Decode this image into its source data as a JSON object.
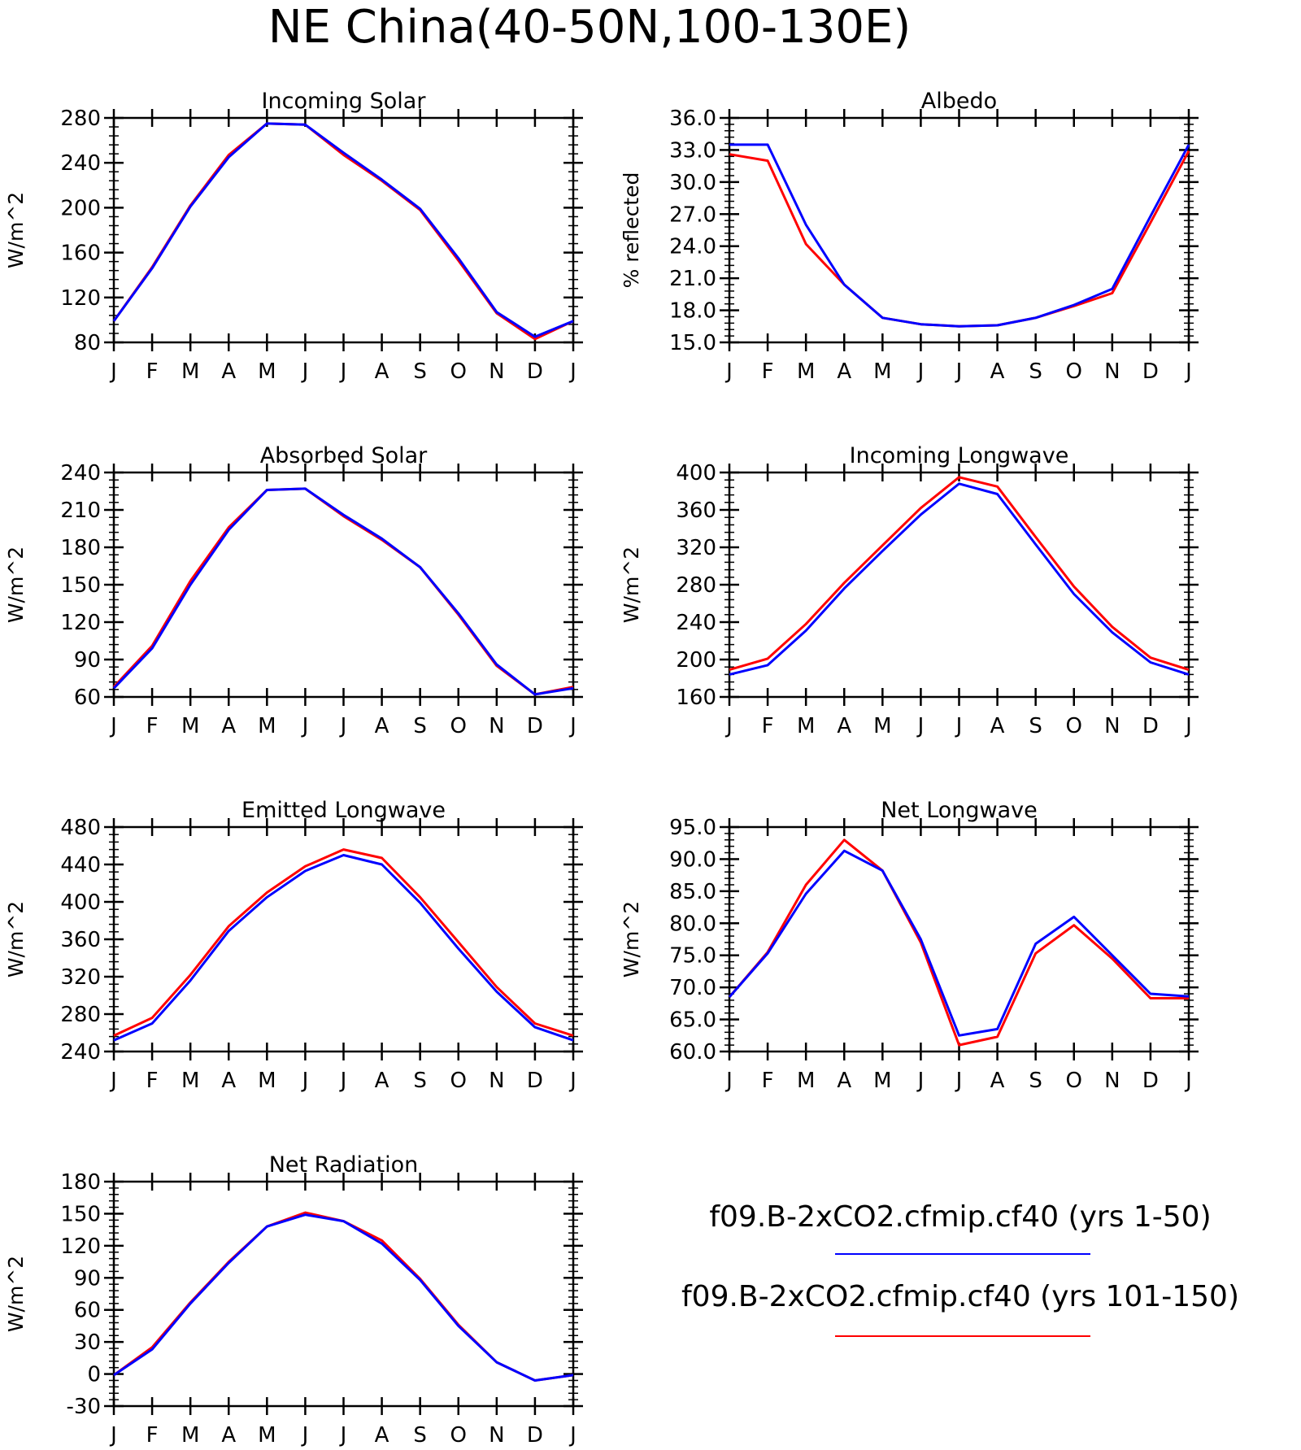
{
  "figure_title": "NE China(40-50N,100-130E)",
  "legend": [
    {
      "label": "f09.B-2xCO2.cfmip.cf40 (yrs 1-50)",
      "color": "#0000ff"
    },
    {
      "label": "f09.B-2xCO2.cfmip.cf40 (yrs 101-150)",
      "color": "#ff0000"
    }
  ],
  "chart_data": [
    {
      "type": "line",
      "title": "Incoming Solar",
      "ylabel": "W/m^2",
      "ylim": [
        80,
        280
      ],
      "yticks": [
        "80",
        "120",
        "160",
        "200",
        "240",
        "280"
      ],
      "categories": [
        "J",
        "F",
        "M",
        "A",
        "M",
        "J",
        "J",
        "A",
        "S",
        "O",
        "N",
        "D",
        "J"
      ],
      "series": [
        {
          "color": "#ff0000",
          "values": [
            99,
            147,
            202,
            247,
            275,
            274,
            247,
            224,
            198,
            153,
            106,
            83,
            99
          ]
        },
        {
          "color": "#0000ff",
          "values": [
            99,
            146,
            201,
            245,
            275,
            274,
            249,
            225,
            199,
            155,
            107,
            85,
            99
          ]
        }
      ]
    },
    {
      "type": "line",
      "title": "Albedo",
      "ylabel": "% reflected",
      "ylim": [
        15,
        36
      ],
      "yticks": [
        "15.0",
        "18.0",
        "21.0",
        "24.0",
        "27.0",
        "30.0",
        "33.0",
        "36.0"
      ],
      "categories": [
        "J",
        "F",
        "M",
        "A",
        "M",
        "J",
        "J",
        "A",
        "S",
        "O",
        "N",
        "D",
        "J"
      ],
      "series": [
        {
          "color": "#ff0000",
          "values": [
            32.6,
            32.0,
            24.2,
            20.4,
            17.3,
            16.7,
            16.5,
            16.6,
            17.3,
            18.4,
            19.6,
            26.2,
            32.9
          ]
        },
        {
          "color": "#0000ff",
          "values": [
            33.5,
            33.5,
            26.0,
            20.4,
            17.3,
            16.7,
            16.5,
            16.6,
            17.3,
            18.5,
            20.0,
            26.8,
            33.5
          ]
        }
      ]
    },
    {
      "type": "line",
      "title": "Absorbed Solar",
      "ylabel": "W/m^2",
      "ylim": [
        60,
        240
      ],
      "yticks": [
        "60",
        "90",
        "120",
        "150",
        "180",
        "210",
        "240"
      ],
      "categories": [
        "J",
        "F",
        "M",
        "A",
        "M",
        "J",
        "J",
        "A",
        "S",
        "O",
        "N",
        "D",
        "J"
      ],
      "series": [
        {
          "color": "#ff0000",
          "values": [
            68,
            101,
            153,
            196,
            226,
            227,
            205,
            186,
            164,
            126,
            85,
            62,
            68
          ]
        },
        {
          "color": "#0000ff",
          "values": [
            67,
            99,
            150,
            194,
            226,
            227,
            206,
            187,
            164,
            127,
            86,
            62,
            67
          ]
        }
      ]
    },
    {
      "type": "line",
      "title": "Incoming Longwave",
      "ylabel": "W/m^2",
      "ylim": [
        160,
        400
      ],
      "yticks": [
        "160",
        "200",
        "240",
        "280",
        "320",
        "360",
        "400"
      ],
      "categories": [
        "J",
        "F",
        "M",
        "A",
        "M",
        "J",
        "J",
        "A",
        "S",
        "O",
        "N",
        "D",
        "J"
      ],
      "series": [
        {
          "color": "#ff0000",
          "values": [
            189,
            201,
            238,
            282,
            322,
            362,
            395,
            385,
            331,
            278,
            235,
            202,
            189
          ]
        },
        {
          "color": "#0000ff",
          "values": [
            184,
            194,
            231,
            276,
            316,
            355,
            388,
            377,
            323,
            270,
            229,
            197,
            184
          ]
        }
      ]
    },
    {
      "type": "line",
      "title": "Emitted Longwave",
      "ylabel": "W/m^2",
      "ylim": [
        240,
        480
      ],
      "yticks": [
        "240",
        "280",
        "320",
        "360",
        "400",
        "440",
        "480"
      ],
      "categories": [
        "J",
        "F",
        "M",
        "A",
        "M",
        "J",
        "J",
        "A",
        "S",
        "O",
        "N",
        "D",
        "J"
      ],
      "series": [
        {
          "color": "#ff0000",
          "values": [
            257,
            276,
            322,
            374,
            410,
            438,
            456,
            447,
            405,
            357,
            309,
            270,
            257
          ]
        },
        {
          "color": "#0000ff",
          "values": [
            252,
            270,
            316,
            369,
            405,
            433,
            450,
            440,
            399,
            350,
            304,
            266,
            252
          ]
        }
      ]
    },
    {
      "type": "line",
      "title": "Net Longwave",
      "ylabel": "W/m^2",
      "ylim": [
        60,
        95
      ],
      "yticks": [
        "60.0",
        "65.0",
        "70.0",
        "75.0",
        "80.0",
        "85.0",
        "90.0",
        "95.0"
      ],
      "categories": [
        "J",
        "F",
        "M",
        "A",
        "M",
        "J",
        "J",
        "A",
        "S",
        "O",
        "N",
        "D",
        "J"
      ],
      "series": [
        {
          "color": "#ff0000",
          "values": [
            68.5,
            75.5,
            86.0,
            93.0,
            88.2,
            77.0,
            61.0,
            62.3,
            75.3,
            79.7,
            74.5,
            68.3,
            68.3
          ]
        },
        {
          "color": "#0000ff",
          "values": [
            68.5,
            75.3,
            84.6,
            91.3,
            88.2,
            77.5,
            62.5,
            63.5,
            76.8,
            81.0,
            75.0,
            69.0,
            68.6
          ]
        }
      ]
    },
    {
      "type": "line",
      "title": "Net Radiation",
      "ylabel": "W/m^2",
      "ylim": [
        -30,
        180
      ],
      "yticks": [
        "-30",
        "0",
        "30",
        "60",
        "90",
        "120",
        "150",
        "180"
      ],
      "categories": [
        "J",
        "F",
        "M",
        "A",
        "M",
        "J",
        "J",
        "A",
        "S",
        "O",
        "N",
        "D",
        "J"
      ],
      "series": [
        {
          "color": "#ff0000",
          "values": [
            -1,
            25,
            67,
            105,
            138,
            151,
            143,
            125,
            89,
            46,
            11,
            -6,
            -1
          ]
        },
        {
          "color": "#0000ff",
          "values": [
            -1,
            23,
            66,
            104,
            138,
            149,
            143,
            122,
            88,
            45,
            11,
            -6,
            -1
          ]
        }
      ]
    }
  ]
}
